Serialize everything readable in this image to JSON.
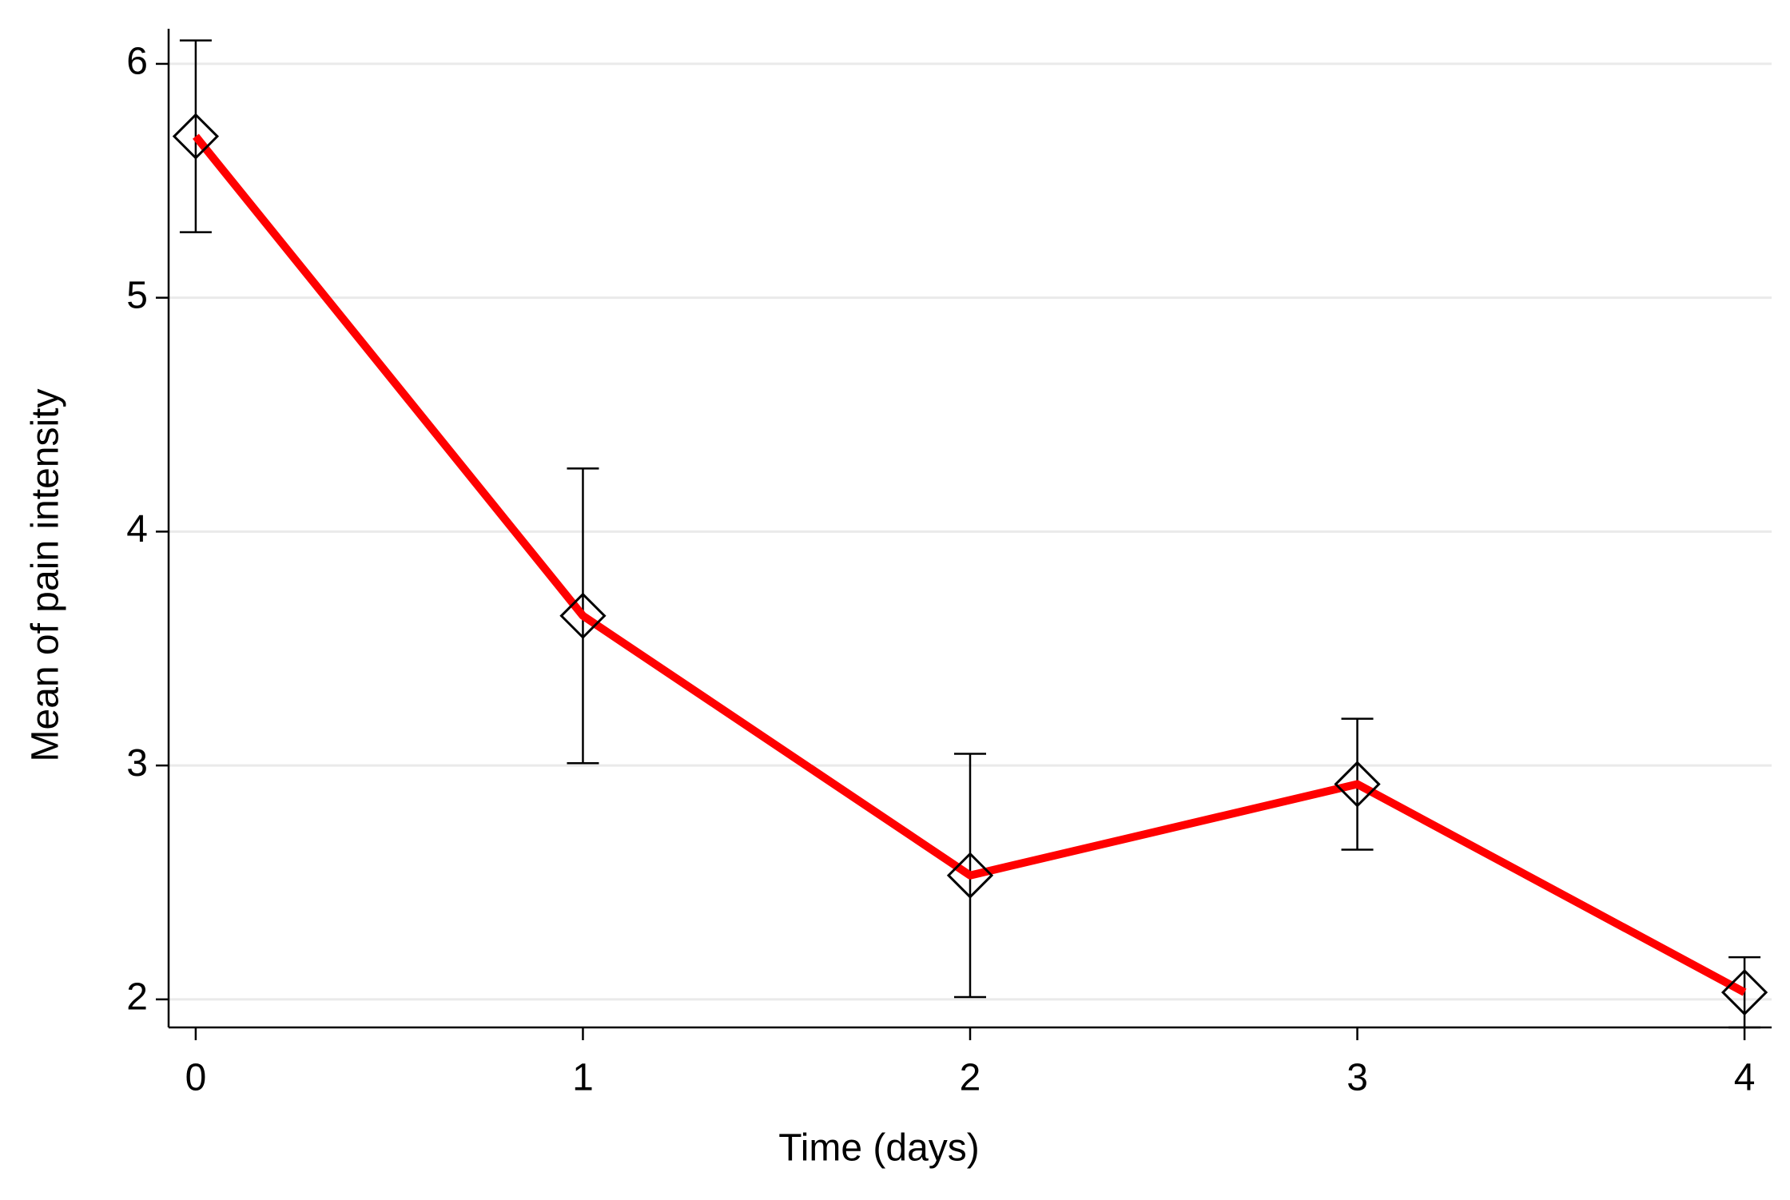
{
  "chart_data": {
    "type": "line",
    "xlabel": "Time (days)",
    "ylabel": "Mean of pain intensity",
    "x": [
      0,
      1,
      2,
      3,
      4
    ],
    "values": [
      5.69,
      3.64,
      2.53,
      2.92,
      2.03
    ],
    "errors": [
      0.41,
      0.63,
      0.52,
      0.28,
      0.15
    ],
    "color": "#ff0000",
    "xlim": [
      -0.07,
      4.07
    ],
    "xticks": [
      0,
      1,
      2,
      3,
      4
    ],
    "ylim": [
      1.88,
      6.15
    ],
    "yticks": [
      2,
      3,
      4,
      5,
      6
    ],
    "grid": true
  }
}
